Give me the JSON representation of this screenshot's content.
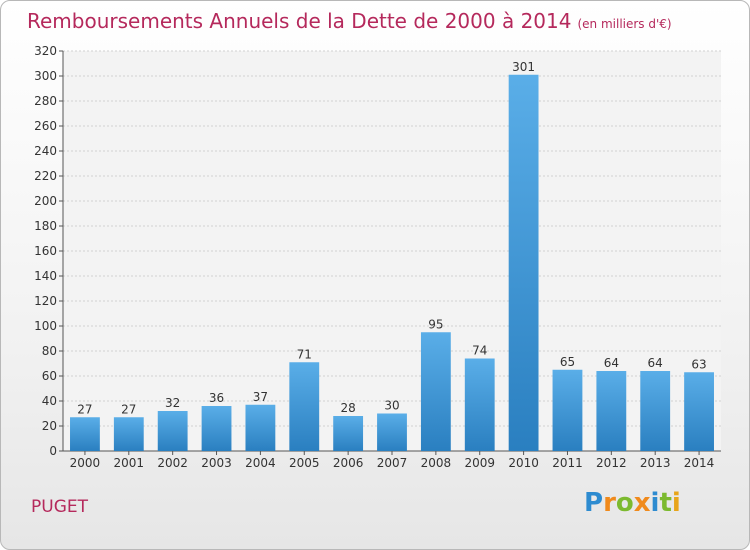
{
  "title": "Remboursements Annuels de la Dette de 2000 à 2014",
  "subtitle": "(en milliers d'€)",
  "commune": "PUGET",
  "logo": "Proxiti",
  "chart_data": {
    "type": "bar",
    "categories": [
      "2000",
      "2001",
      "2002",
      "2003",
      "2004",
      "2005",
      "2006",
      "2007",
      "2008",
      "2009",
      "2010",
      "2011",
      "2012",
      "2013",
      "2014"
    ],
    "values": [
      27,
      27,
      32,
      36,
      37,
      71,
      28,
      30,
      95,
      74,
      301,
      65,
      64,
      64,
      63
    ],
    "ylim": [
      0,
      320
    ],
    "yticks": [
      0,
      20,
      40,
      60,
      80,
      100,
      120,
      140,
      160,
      180,
      200,
      220,
      240,
      260,
      280,
      300,
      320
    ],
    "grid": true,
    "bar_color_top": "#5aaee8",
    "bar_color_bottom": "#2a7fc0"
  }
}
